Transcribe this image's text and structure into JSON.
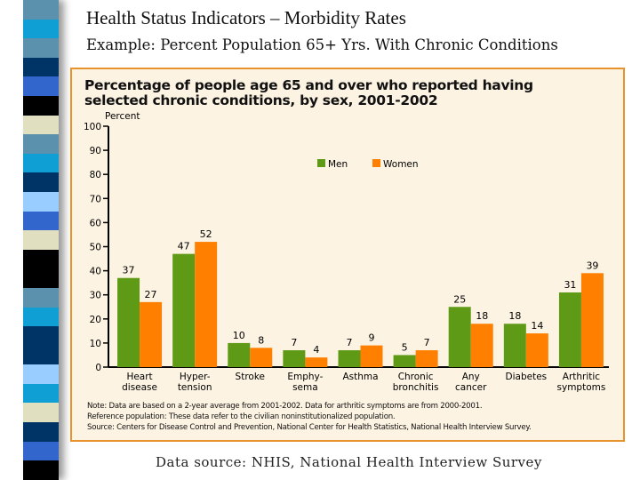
{
  "slide": {
    "title": "Health Status Indicators – Morbidity Rates",
    "subtitle": "Example: Percent Population 65+ Yrs. With Chronic Conditions",
    "footer": "Data source: NHIS, National Health Interview Survey",
    "stripe_colors": [
      "#5b91ad",
      "#0f9fd4",
      "#5b91ad",
      "#003366",
      "#3366cc",
      "#000000",
      "#e0dfbf",
      "#5b91ad",
      "#0f9fd4",
      "#003366",
      "#99ccff",
      "#3366cc",
      "#e0dfbf",
      "#000000",
      "#000000",
      "#5b91ad",
      "#0f9fd4",
      "#003366",
      "#003366",
      "#99ccff",
      "#0f9fd4",
      "#e0dfbf",
      "#003366",
      "#3366cc",
      "#000000"
    ]
  },
  "chart_data": {
    "type": "bar",
    "title": "Percentage of people age 65 and over who reported having selected chronic conditions, by sex, 2001-2002",
    "ylabel": "Percent",
    "ylim": [
      0,
      100
    ],
    "yticks": [
      0,
      10,
      20,
      30,
      40,
      50,
      60,
      70,
      80,
      90,
      100
    ],
    "grid": false,
    "legend_position": "top-center",
    "categories": [
      [
        "Heart",
        "disease"
      ],
      [
        "Hyper-",
        "tension"
      ],
      [
        "Stroke"
      ],
      [
        "Emphy-",
        "sema"
      ],
      [
        "Asthma"
      ],
      [
        "Chronic",
        "bronchitis"
      ],
      [
        "Any",
        "cancer"
      ],
      [
        "Diabetes"
      ],
      [
        "Arthritic",
        "symptoms"
      ]
    ],
    "series": [
      {
        "name": "Men",
        "color": "#5e9a16",
        "values": [
          37,
          47,
          10,
          7,
          7,
          5,
          25,
          18,
          31
        ]
      },
      {
        "name": "Women",
        "color": "#ff8000",
        "values": [
          27,
          52,
          8,
          4,
          9,
          7,
          18,
          14,
          39
        ]
      }
    ],
    "notes": [
      "Note: Data are based on a 2-year average from 2001-2002. Data for arthritic symptoms are from 2000-2001.",
      "Reference population: These data refer to the civilian noninstitutionalized population.",
      "Source: Centers for Disease Control and Prevention, National Center for Health Statistics, National Health Interview Survey."
    ]
  }
}
